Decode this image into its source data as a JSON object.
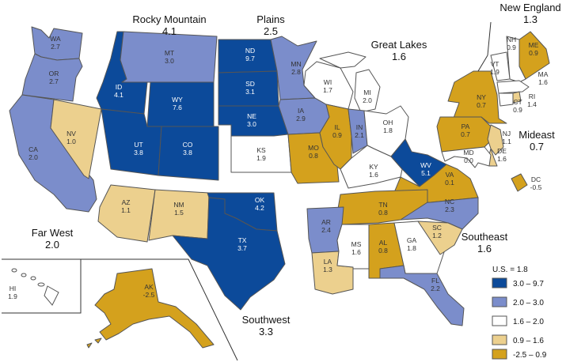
{
  "us_label": "U.S. = 1.8",
  "legend": [
    {
      "label": "3.0 – 9.7",
      "color": "#0c4a9a"
    },
    {
      "label": "2.0 – 3.0",
      "color": "#7b8dcb"
    },
    {
      "label": "1.6 – 2.0",
      "color": "#ffffff"
    },
    {
      "label": "0.9 – 1.6",
      "color": "#ecd08e"
    },
    {
      "label": "-2.5 – 0.9",
      "color": "#d4a11d"
    }
  ],
  "regions": [
    {
      "name": "Rocky Mountain",
      "value": "4.1"
    },
    {
      "name": "Plains",
      "value": "2.5"
    },
    {
      "name": "Great Lakes",
      "value": "1.6"
    },
    {
      "name": "New England",
      "value": "1.3"
    },
    {
      "name": "Mideast",
      "value": "0.7"
    },
    {
      "name": "Far West",
      "value": "2.0"
    },
    {
      "name": "Southwest",
      "value": "3.3"
    },
    {
      "name": "Southeast",
      "value": "1.6"
    }
  ],
  "states": {
    "WA": {
      "code": "WA",
      "value": "2.7"
    },
    "OR": {
      "code": "OR",
      "value": "2.7"
    },
    "CA": {
      "code": "CA",
      "value": "2.0"
    },
    "NV": {
      "code": "NV",
      "value": "1.0"
    },
    "ID": {
      "code": "ID",
      "value": "4.1"
    },
    "MT": {
      "code": "MT",
      "value": "3.0"
    },
    "WY": {
      "code": "WY",
      "value": "7.6"
    },
    "UT": {
      "code": "UT",
      "value": "3.8"
    },
    "CO": {
      "code": "CO",
      "value": "3.8"
    },
    "AZ": {
      "code": "AZ",
      "value": "1.1"
    },
    "NM": {
      "code": "NM",
      "value": "1.5"
    },
    "ND": {
      "code": "ND",
      "value": "9.7"
    },
    "SD": {
      "code": "SD",
      "value": "3.1"
    },
    "NE": {
      "code": "NE",
      "value": "3.0"
    },
    "KS": {
      "code": "KS",
      "value": "1.9"
    },
    "MN": {
      "code": "MN",
      "value": "2.8"
    },
    "IA": {
      "code": "IA",
      "value": "2.9"
    },
    "MO": {
      "code": "MO",
      "value": "0.8"
    },
    "OK": {
      "code": "OK",
      "value": "4.2"
    },
    "TX": {
      "code": "TX",
      "value": "3.7"
    },
    "WI": {
      "code": "WI",
      "value": "1.7"
    },
    "MI": {
      "code": "MI",
      "value": "2.0"
    },
    "IL": {
      "code": "IL",
      "value": "0.9"
    },
    "IN": {
      "code": "IN",
      "value": "2.1"
    },
    "OH": {
      "code": "OH",
      "value": "1.8"
    },
    "KY": {
      "code": "KY",
      "value": "1.6"
    },
    "WV": {
      "code": "WV",
      "value": "5.1"
    },
    "VA": {
      "code": "VA",
      "value": "0.1"
    },
    "NC": {
      "code": "NC",
      "value": "2.3"
    },
    "TN": {
      "code": "TN",
      "value": "0.8"
    },
    "AR": {
      "code": "AR",
      "value": "2.4"
    },
    "LA": {
      "code": "LA",
      "value": "1.3"
    },
    "MS": {
      "code": "MS",
      "value": "1.6"
    },
    "AL": {
      "code": "AL",
      "value": "0.8"
    },
    "GA": {
      "code": "GA",
      "value": "1.8"
    },
    "SC": {
      "code": "SC",
      "value": "1.2"
    },
    "FL": {
      "code": "FL",
      "value": "2.2"
    },
    "NY": {
      "code": "NY",
      "value": "0.7"
    },
    "PA": {
      "code": "PA",
      "value": "0.7"
    },
    "NJ": {
      "code": "NJ",
      "value": "1.1"
    },
    "DE": {
      "code": "DE",
      "value": "1.6"
    },
    "MD": {
      "code": "MD",
      "value": "0.0"
    },
    "DC": {
      "code": "DC",
      "value": "-0.5"
    },
    "ME": {
      "code": "ME",
      "value": "0.9"
    },
    "NH": {
      "code": "NH",
      "value": "0.9"
    },
    "VT": {
      "code": "VT",
      "value": "1.9"
    },
    "MA": {
      "code": "MA",
      "value": "1.6"
    },
    "RI": {
      "code": "RI",
      "value": "1.4"
    },
    "CT": {
      "code": "CT",
      "value": "0.9"
    },
    "AK": {
      "code": "AK",
      "value": "-2.5"
    },
    "HI": {
      "code": "HI",
      "value": "1.9"
    }
  }
}
